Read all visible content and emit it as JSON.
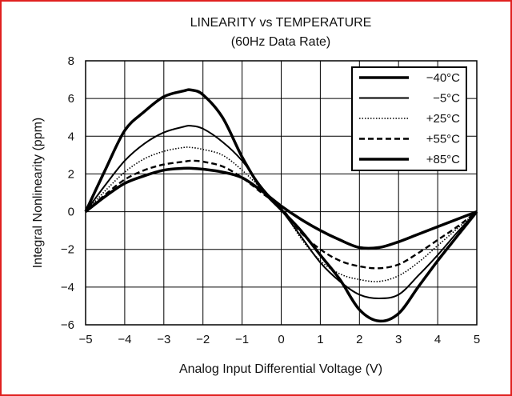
{
  "chart_data": {
    "type": "line",
    "title": "LINEARITY vs TEMPERATURE",
    "subtitle": "(60Hz Data Rate)",
    "xlabel": "Analog Input Differential Voltage (V)",
    "ylabel": "Integral Nonlinearity (ppm)",
    "xlim": [
      -5,
      5
    ],
    "ylim": [
      -6,
      8
    ],
    "xticks": [
      -5,
      -4,
      -3,
      -2,
      -1,
      0,
      1,
      2,
      3,
      4,
      5
    ],
    "yticks": [
      -6,
      -4,
      -2,
      0,
      2,
      4,
      6,
      8
    ],
    "xtick_labels": [
      "−5",
      "−4",
      "−3",
      "−2",
      "−1",
      "0",
      "1",
      "2",
      "3",
      "4",
      "5"
    ],
    "ytick_labels": [
      "−6",
      "−4",
      "−2",
      "0",
      "2",
      "4",
      "6",
      "8"
    ],
    "grid": true,
    "legend_position": "top-right",
    "series": [
      {
        "name": "−40°C",
        "style": "thick-solid",
        "x": [
          -5,
          -4.5,
          -4,
          -3.5,
          -3,
          -2.5,
          -2.3,
          -2,
          -1.5,
          -1,
          -0.5,
          0,
          0.5,
          1,
          1.5,
          2,
          2.5,
          3,
          3.5,
          4,
          4.5,
          5
        ],
        "y": [
          0,
          2.2,
          4.3,
          5.3,
          6.1,
          6.4,
          6.45,
          6.2,
          5.0,
          2.9,
          1.2,
          0.1,
          -1.0,
          -2.3,
          -3.6,
          -5.2,
          -5.8,
          -5.4,
          -4.0,
          -2.6,
          -1.3,
          0
        ]
      },
      {
        "name": "−5°C",
        "style": "solid",
        "x": [
          -5,
          -4.5,
          -4,
          -3.5,
          -3,
          -2.5,
          -2.3,
          -2,
          -1.5,
          -1,
          -0.5,
          0,
          0.5,
          1,
          1.5,
          2,
          2.5,
          3,
          3.5,
          4,
          4.5,
          5
        ],
        "y": [
          0,
          1.4,
          2.7,
          3.6,
          4.2,
          4.5,
          4.55,
          4.4,
          3.7,
          2.7,
          1.3,
          0.1,
          -1.3,
          -2.7,
          -3.7,
          -4.4,
          -4.6,
          -4.4,
          -3.4,
          -2.3,
          -1.1,
          0
        ]
      },
      {
        "name": "+25°C",
        "style": "dotted",
        "x": [
          -5,
          -4.5,
          -4,
          -3.5,
          -3,
          -2.5,
          -2.3,
          -2,
          -1.5,
          -1,
          -0.5,
          0,
          0.5,
          1,
          1.5,
          2,
          2.5,
          3,
          3.5,
          4,
          4.5,
          5
        ],
        "y": [
          0,
          1.1,
          2.1,
          2.8,
          3.2,
          3.4,
          3.4,
          3.3,
          3.0,
          2.2,
          1.2,
          0.2,
          -1.4,
          -2.6,
          -3.3,
          -3.6,
          -3.7,
          -3.4,
          -2.7,
          -1.8,
          -0.9,
          0
        ]
      },
      {
        "name": "+55°C",
        "style": "dashed",
        "x": [
          -5,
          -4.5,
          -4,
          -3.5,
          -3,
          -2.5,
          -2.3,
          -2,
          -1.5,
          -1,
          -0.5,
          0,
          0.5,
          1,
          1.5,
          2,
          2.5,
          3,
          3.5,
          4,
          4.5,
          5
        ],
        "y": [
          0,
          0.9,
          1.7,
          2.2,
          2.5,
          2.65,
          2.7,
          2.65,
          2.4,
          1.8,
          1.0,
          0.2,
          -1.1,
          -2.0,
          -2.6,
          -2.9,
          -3.0,
          -2.8,
          -2.2,
          -1.5,
          -0.8,
          0
        ]
      },
      {
        "name": "+85°C",
        "style": "thick-solid",
        "x": [
          -5,
          -4.5,
          -4,
          -3.5,
          -3,
          -2.5,
          -2.3,
          -2,
          -1.5,
          -1,
          -0.5,
          0,
          0.5,
          1,
          1.5,
          2,
          2.5,
          3,
          3.5,
          4,
          4.5,
          5
        ],
        "y": [
          0,
          0.8,
          1.5,
          1.9,
          2.2,
          2.3,
          2.3,
          2.25,
          2.1,
          1.8,
          1.1,
          0.3,
          -0.4,
          -1.0,
          -1.5,
          -1.9,
          -1.9,
          -1.6,
          -1.2,
          -0.8,
          -0.4,
          0
        ]
      }
    ]
  },
  "colors": {
    "frame": "#e0201f",
    "ink": "#000000",
    "grid": "#000000"
  }
}
